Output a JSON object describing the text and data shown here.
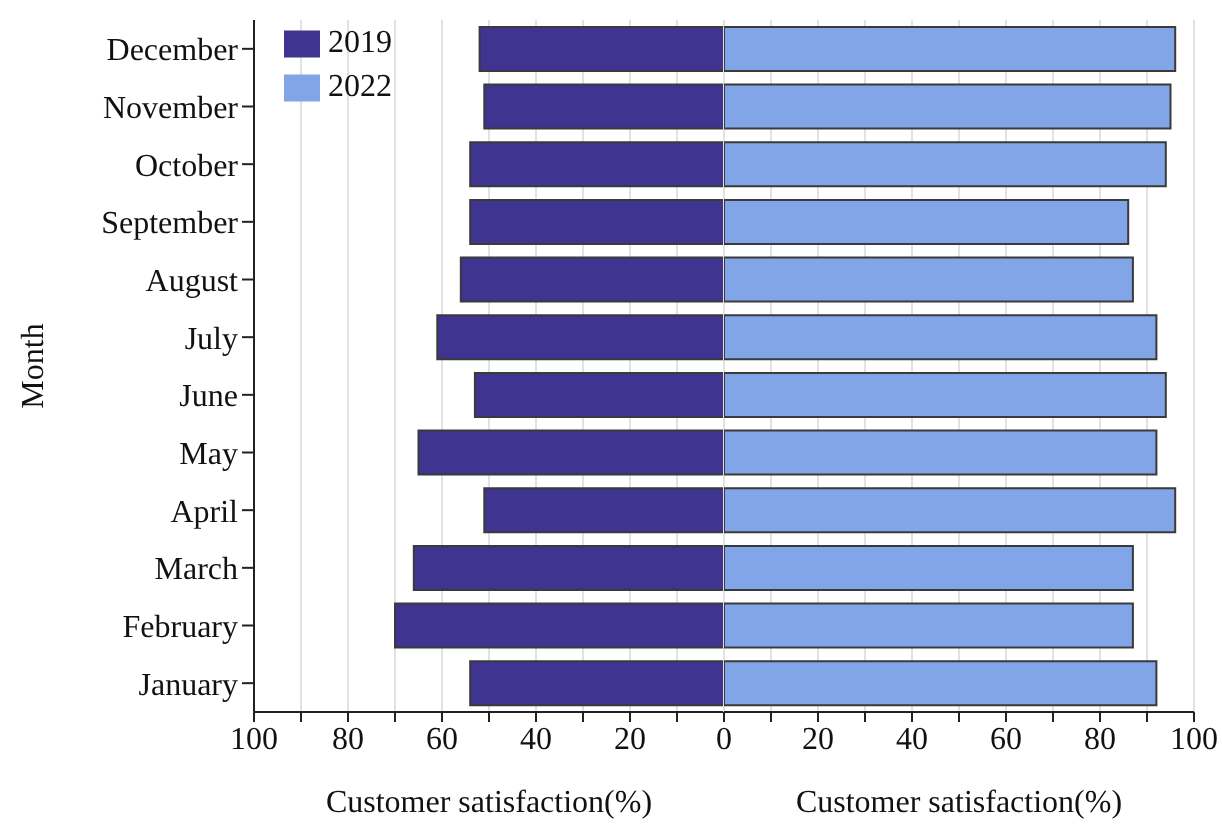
{
  "chart_data": [
    {
      "type": "bar",
      "orientation": "horizontal",
      "ylabel": "Month",
      "xlabel": "Customer satisfaction(%)",
      "categories": [
        "December",
        "November",
        "October",
        "September",
        "August",
        "July",
        "June",
        "May",
        "April",
        "March",
        "February",
        "January"
      ],
      "series": [
        {
          "name": "2019",
          "color": "#3f3590",
          "values": [
            52,
            51,
            54,
            54,
            56,
            61,
            53,
            65,
            51,
            66,
            70,
            54
          ]
        }
      ],
      "xlim": [
        100,
        0
      ],
      "xticks": [
        100,
        {
          "value": 90,
          "label": null
        },
        80,
        {
          "value": 70,
          "label": null
        },
        60,
        {
          "value": 50,
          "label": null
        },
        40,
        {
          "value": 30,
          "label": null
        },
        20,
        {
          "value": 10,
          "label": null
        },
        {
          "value": 0,
          "label": null
        }
      ],
      "grid": "x",
      "legend": "top left"
    },
    {
      "type": "bar",
      "orientation": "horizontal",
      "xlabel": "Customer satisfaction(%)",
      "categories": [
        null,
        null,
        null,
        null,
        null,
        null,
        null,
        null,
        null,
        null,
        null,
        null
      ],
      "series": [
        {
          "name": "2022",
          "color": "#82a5e8",
          "values": [
            96,
            95,
            94,
            86,
            87,
            92,
            94,
            92,
            96,
            87,
            87,
            92
          ]
        }
      ],
      "xlim": [
        0,
        100
      ],
      "xticks": [
        0,
        {
          "value": 10,
          "label": null
        },
        20,
        {
          "value": 30,
          "label": null
        },
        40,
        {
          "value": 50,
          "label": null
        },
        60,
        {
          "value": 70,
          "label": null
        },
        80,
        {
          "value": 90,
          "label": null
        },
        100
      ],
      "grid": "x",
      "legend": "top left",
      "tick_labels": "x"
    }
  ]
}
